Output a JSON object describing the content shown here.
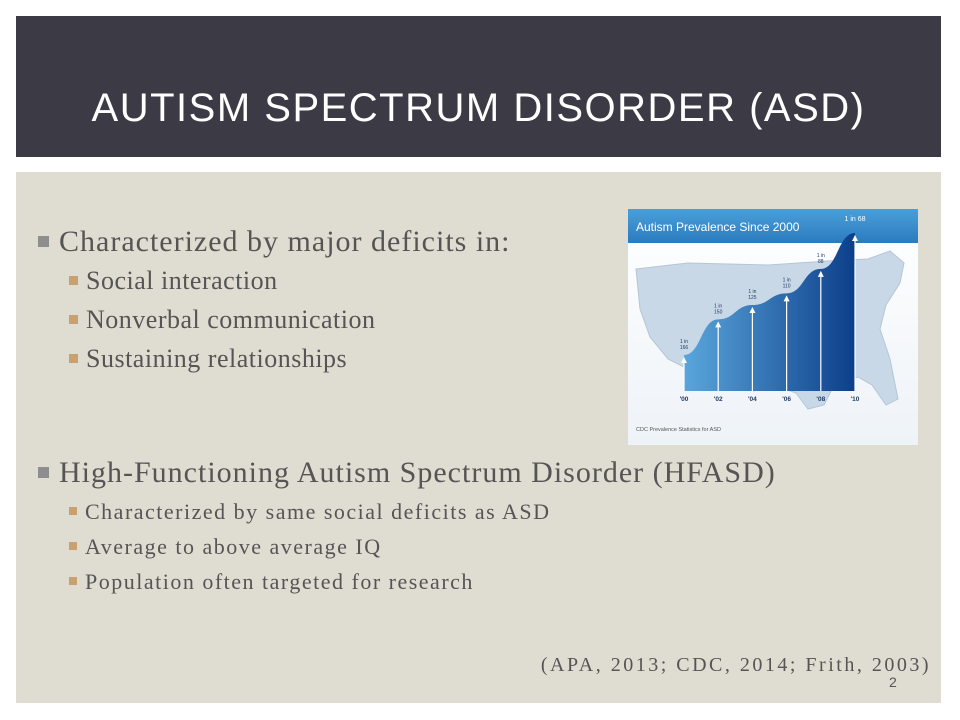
{
  "slide": {
    "title": "AUTISM SPECTRUM DISORDER (ASD)",
    "page_number": "2",
    "citation": "(APA, 2013; CDC, 2014; Frith, 2003)"
  },
  "bullets": {
    "main1": "Characterized by major deficits in:",
    "sub1": [
      "Social interaction",
      "Nonverbal communication",
      "Sustaining relationships"
    ],
    "main2": "High-Functioning Autism Spectrum Disorder (HFASD)",
    "sub2": [
      "Characterized by same social deficits as ASD",
      "Average to above average IQ",
      "Population often targeted for research"
    ]
  },
  "colors": {
    "title_bar": "#3c3a45",
    "content_bg": "#dfdcd1",
    "text": "#555555"
  },
  "chart_data": {
    "type": "area",
    "title": "Autism Prevalence Since 2000",
    "source": "CDC Prevalence Statistics for ASD",
    "categories": [
      "'00",
      "'02",
      "'04",
      "'06",
      "'08",
      "'10"
    ],
    "labels": [
      "1 in 166",
      "1 in 150",
      "1 in 125",
      "1 in 110",
      "1 in 88",
      "1 in 68"
    ],
    "values": [
      166,
      150,
      125,
      110,
      88,
      68
    ]
  }
}
